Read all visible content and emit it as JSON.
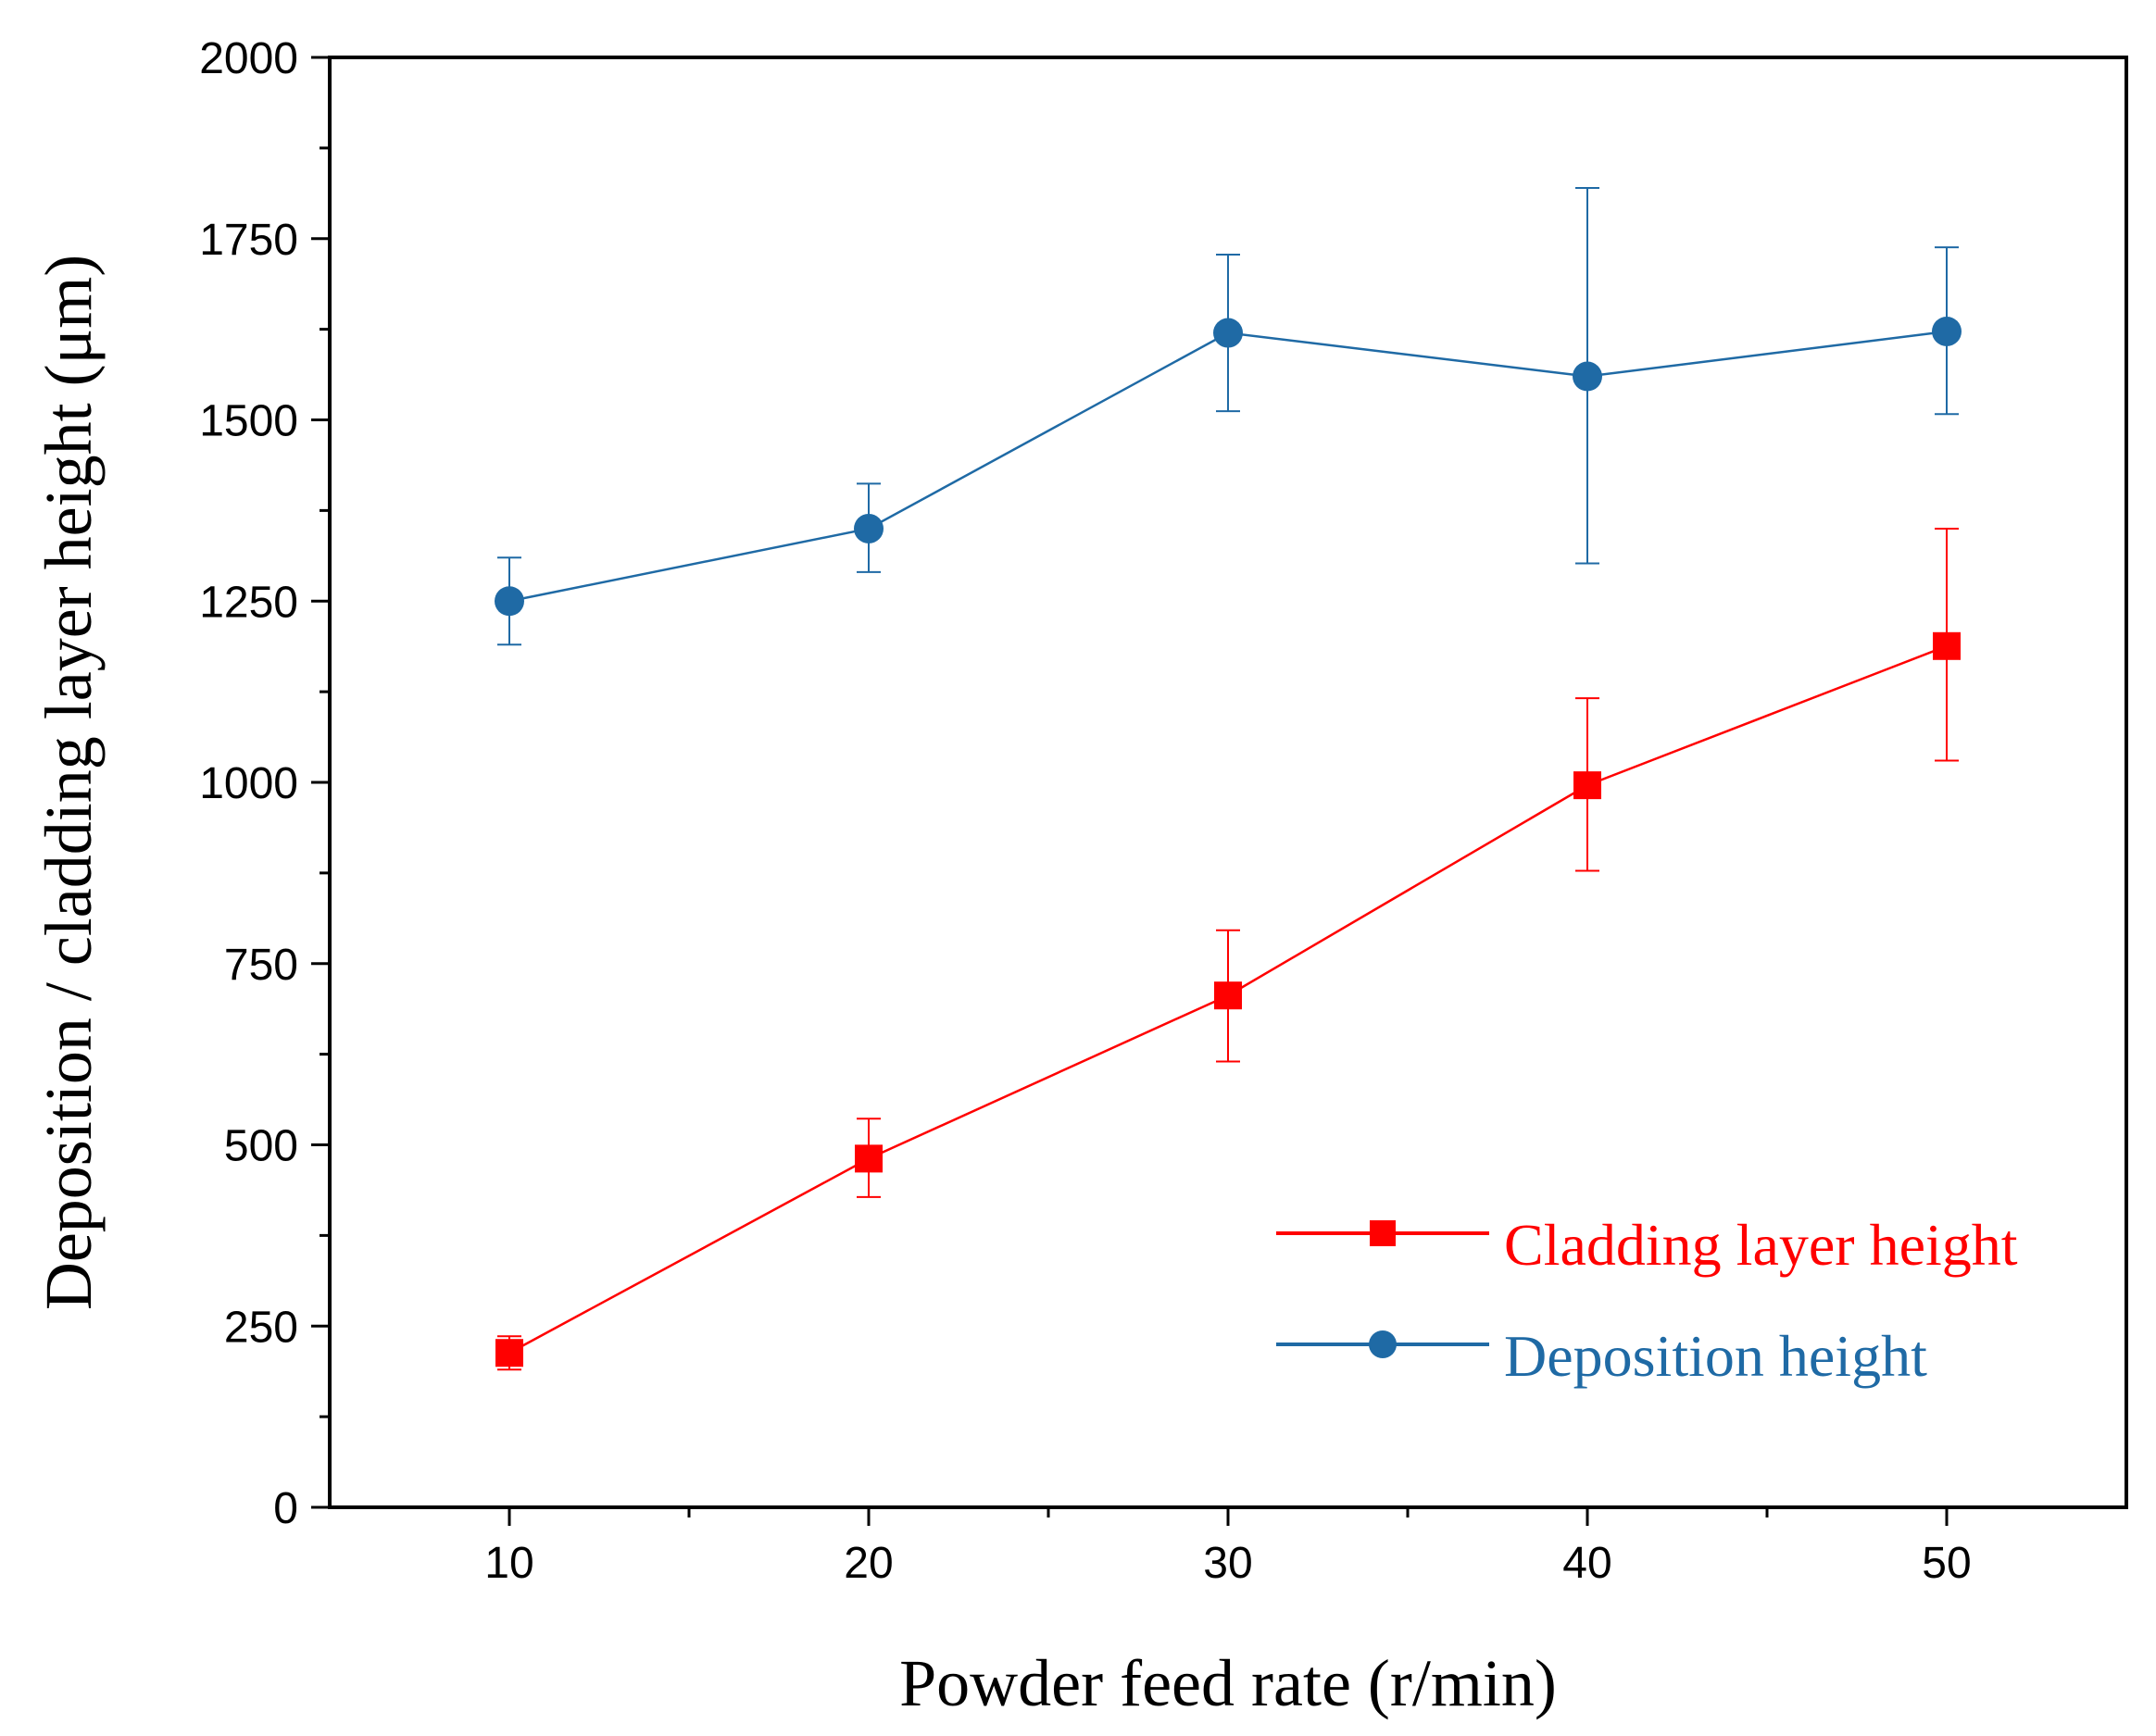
{
  "chart_data": {
    "type": "line",
    "title": "",
    "xlabel": "Powder feed rate (r/min)",
    "ylabel": "Deposition / cladding layer height (μm)",
    "xlim": [
      5,
      55
    ],
    "ylim": [
      0,
      2000
    ],
    "x_ticks": [
      "10",
      "20",
      "30",
      "40",
      "50"
    ],
    "y_ticks": [
      "0",
      "250",
      "500",
      "750",
      "1000",
      "1250",
      "1500",
      "1750",
      "2000"
    ],
    "x_tick_values": [
      10,
      20,
      30,
      40,
      50
    ],
    "y_tick_values": [
      0,
      250,
      500,
      750,
      1000,
      1250,
      1500,
      1750,
      2000
    ],
    "x_minor_ticks": [
      15,
      25,
      35,
      45
    ],
    "y_minor_ticks": [
      125,
      375,
      625,
      875,
      1125,
      1375,
      1625,
      1875
    ],
    "grid": false,
    "legend_position": "bottom-right",
    "x": [
      10,
      20,
      30,
      40,
      50
    ],
    "series": [
      {
        "name": "Cladding layer height",
        "color": "#ff0000",
        "marker": "square",
        "values": [
          213,
          481,
          706,
          996,
          1188
        ],
        "error_low": [
          190,
          428,
          615,
          878,
          1030
        ],
        "error_high": [
          236,
          536,
          796,
          1116,
          1350
        ]
      },
      {
        "name": "Deposition height",
        "color": "#1f6aa5",
        "marker": "circle",
        "values": [
          1250,
          1350,
          1620,
          1560,
          1622
        ],
        "error_low": [
          1190,
          1290,
          1512,
          1302,
          1508
        ],
        "error_high": [
          1310,
          1412,
          1728,
          1820,
          1738
        ]
      }
    ]
  }
}
